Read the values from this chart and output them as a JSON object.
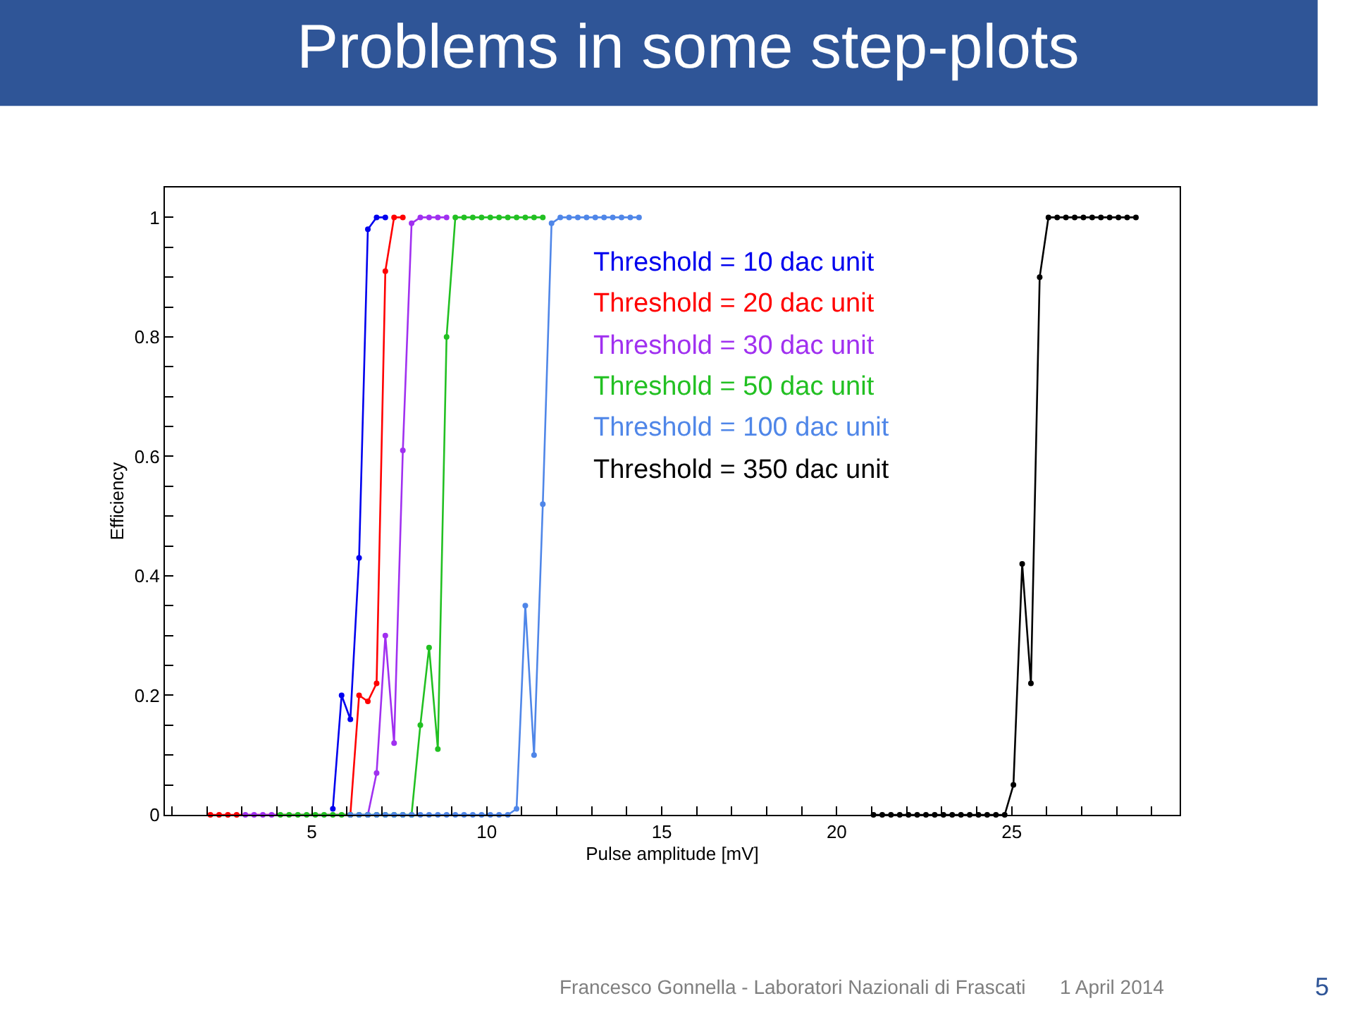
{
  "chart_data": {
    "type": "line",
    "title": "Problems in some step-plots",
    "xlabel": "Pulse amplitude [mV]",
    "ylabel": "Efficiency",
    "xlim": [
      0.8,
      29.8
    ],
    "ylim": [
      0,
      1.05
    ],
    "xticks": [
      {
        "value": 1,
        "label": null
      },
      {
        "value": 2,
        "label": null
      },
      {
        "value": 3,
        "label": null
      },
      {
        "value": 4,
        "label": null
      },
      5,
      {
        "value": 6,
        "label": null
      },
      {
        "value": 7,
        "label": null
      },
      {
        "value": 8,
        "label": null
      },
      {
        "value": 9,
        "label": null
      },
      10,
      {
        "value": 11,
        "label": null
      },
      {
        "value": 12,
        "label": null
      },
      {
        "value": 13,
        "label": null
      },
      {
        "value": 14,
        "label": null
      },
      15,
      {
        "value": 16,
        "label": null
      },
      {
        "value": 17,
        "label": null
      },
      {
        "value": 18,
        "label": null
      },
      {
        "value": 19,
        "label": null
      },
      20,
      {
        "value": 21,
        "label": null
      },
      {
        "value": 22,
        "label": null
      },
      {
        "value": 23,
        "label": null
      },
      {
        "value": 24,
        "label": null
      },
      25,
      {
        "value": 26,
        "label": null
      },
      {
        "value": 27,
        "label": null
      },
      {
        "value": 28,
        "label": null
      },
      {
        "value": 29,
        "label": null
      }
    ],
    "yticks": [
      0,
      {
        "value": 0.05,
        "label": null
      },
      {
        "value": 0.1,
        "label": null
      },
      {
        "value": 0.15,
        "label": null
      },
      0.2,
      {
        "value": 0.25,
        "label": null
      },
      {
        "value": 0.3,
        "label": null
      },
      {
        "value": 0.35,
        "label": null
      },
      0.4,
      {
        "value": 0.45,
        "label": null
      },
      {
        "value": 0.5,
        "label": null
      },
      {
        "value": 0.55,
        "label": null
      },
      0.6,
      {
        "value": 0.65,
        "label": null
      },
      {
        "value": 0.7,
        "label": null
      },
      {
        "value": 0.75,
        "label": null
      },
      0.8,
      {
        "value": 0.85,
        "label": null
      },
      {
        "value": 0.9,
        "label": null
      },
      {
        "value": 0.95,
        "label": null
      },
      1
    ],
    "legend": "top",
    "marker": "circle",
    "line_style": "solid",
    "series": [
      {
        "name": "Threshold = 10 dac unit",
        "color": "#0000ee",
        "x": [
          5.6,
          5.85,
          6.1,
          6.35,
          6.6,
          6.85,
          7.1
        ],
        "values": [
          0.01,
          0.2,
          0.16,
          0.43,
          0.98,
          1,
          1
        ]
      },
      {
        "name": "Threshold = 20 dac unit",
        "color": "#ff0000",
        "x": [
          2.1,
          2.35,
          2.6,
          2.85,
          6.1,
          6.35,
          6.6,
          6.85,
          7.1,
          7.35,
          7.6
        ],
        "values": [
          0,
          0,
          0,
          0,
          0,
          0.2,
          0.19,
          0.22,
          0.91,
          1,
          1
        ]
      },
      {
        "name": "Threshold = 30 dac unit",
        "color": "#a030f0",
        "x": [
          3.1,
          3.35,
          3.6,
          3.85,
          6.6,
          6.85,
          7.1,
          7.35,
          7.6,
          7.85,
          8.1,
          8.35,
          8.6,
          8.85
        ],
        "values": [
          0,
          0,
          0,
          0,
          0,
          0.07,
          0.3,
          0.12,
          0.61,
          0.99,
          1,
          1,
          1,
          1
        ]
      },
      {
        "name": "Threshold = 50 dac unit",
        "color": "#22c022",
        "x": [
          4.1,
          4.35,
          4.6,
          4.85,
          5.1,
          5.35,
          5.6,
          5.85,
          6.1,
          6.35,
          6.6,
          6.85,
          7.1,
          7.35,
          7.6,
          7.85,
          8.1,
          8.35,
          8.6,
          8.85,
          9.1,
          9.35,
          9.6,
          9.85,
          10.1,
          10.35,
          10.6,
          10.85,
          11.1,
          11.35,
          11.6
        ],
        "values": [
          0,
          0,
          0,
          0,
          0,
          0,
          0,
          0,
          0,
          0,
          0,
          0,
          0,
          0,
          0,
          0,
          0.15,
          0.28,
          0.11,
          0.8,
          1,
          1,
          1,
          1,
          1,
          1,
          1,
          1,
          1,
          1,
          1
        ]
      },
      {
        "name": "Threshold = 100 dac unit",
        "color": "#4f86e8",
        "x": [
          6.1,
          6.35,
          6.6,
          6.85,
          7.1,
          7.35,
          7.6,
          7.85,
          8.1,
          8.35,
          8.6,
          8.85,
          9.1,
          9.35,
          9.6,
          9.85,
          10.1,
          10.35,
          10.6,
          10.85,
          11.1,
          11.35,
          11.6,
          11.85,
          12.1,
          12.35,
          12.6,
          12.85,
          13.1,
          13.35,
          13.6,
          13.85,
          14.1,
          14.35
        ],
        "values": [
          0,
          0,
          0,
          0,
          0,
          0,
          0,
          0,
          0,
          0,
          0,
          0,
          0,
          0,
          0,
          0,
          0,
          0,
          0,
          0.01,
          0.35,
          0.1,
          0.52,
          0.99,
          1,
          1,
          1,
          1,
          1,
          1,
          1,
          1,
          1,
          1
        ]
      },
      {
        "name": "Threshold = 350 dac unit",
        "color": "#000000",
        "x": [
          21.05,
          21.3,
          21.55,
          21.8,
          22.05,
          22.3,
          22.55,
          22.8,
          23.05,
          23.3,
          23.55,
          23.8,
          24.05,
          24.3,
          24.55,
          24.8,
          25.05,
          25.3,
          25.55,
          25.8,
          26.05,
          26.3,
          26.55,
          26.8,
          27.05,
          27.3,
          27.55,
          27.8,
          28.05,
          28.3,
          28.55
        ],
        "values": [
          0,
          0,
          0,
          0,
          0,
          0,
          0,
          0,
          0,
          0,
          0,
          0,
          0,
          0,
          0,
          0,
          0.05,
          0.42,
          0.22,
          0.9,
          1,
          1,
          1,
          1,
          1,
          1,
          1,
          1,
          1,
          1,
          1
        ]
      }
    ],
    "annotations": [
      "Francesco Gonnella - Laboratori Nazionali di Frascati",
      "1 April 2014",
      "5"
    ]
  }
}
